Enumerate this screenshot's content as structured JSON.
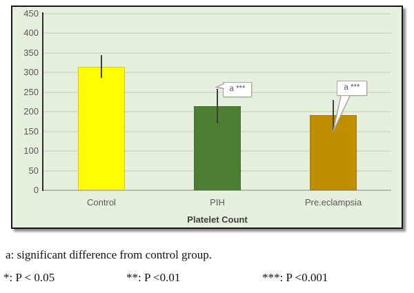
{
  "chart_data": {
    "type": "bar",
    "title": "",
    "xlabel": "Platelet Count",
    "ylabel": "",
    "ylim": [
      0,
      450
    ],
    "ytick_step": 50,
    "grid": true,
    "legend": "none",
    "plot_bg": "#e5f0de",
    "gridline_color": "#d6dcd2",
    "tick_label_color": "#595959",
    "error_bar_color": "#3f3f3f",
    "categories": [
      "Control",
      "PIH",
      "Pre.eclampsia"
    ],
    "series": [
      {
        "name": "Platelet Count",
        "values": [
          314,
          215,
          192
        ],
        "error_low": [
          286,
          171,
          151
        ],
        "error_high": [
          344,
          258,
          231
        ],
        "bar_colors": [
          "#ffff00",
          "#4e7e32",
          "#bf8f00"
        ]
      }
    ],
    "annotations": [
      {
        "category": "PIH",
        "text": "a ***"
      },
      {
        "category": "Pre.eclampsia",
        "text": "a ***"
      }
    ]
  },
  "footnotes": {
    "line1": "a: significant difference from control group.",
    "sig": [
      "*: P < 0.05",
      "**: P <0.01",
      "***: P <0.001"
    ]
  }
}
